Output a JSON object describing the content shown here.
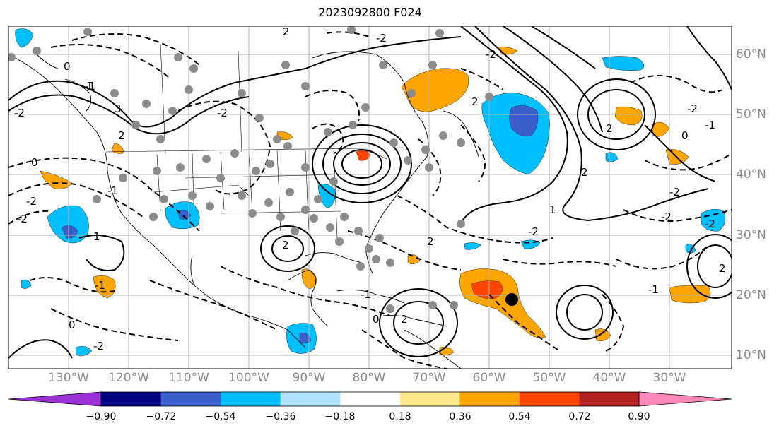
{
  "title": "2023092800 F024",
  "longitude_labels": [
    "130°W",
    "120°W",
    "110°W",
    "100°W",
    "90°W",
    "80°W",
    "70°W",
    "60°W",
    "50°W",
    "40°W",
    "30°W"
  ],
  "latitude_labels": [
    "60°N",
    "50°N",
    "40°N",
    "30°N",
    "20°N",
    "10°N"
  ],
  "colorbar": {
    "tick_labels": [
      "−0.90",
      "−0.72",
      "−0.54",
      "−0.36",
      "−0.18",
      "0.18",
      "0.36",
      "0.54",
      "0.72",
      "0.90"
    ],
    "colors": [
      "#9b30d9",
      "#000080",
      "#3a5fcd",
      "#00bfff",
      "#b0e2ff",
      "#ffffff",
      "#ffe88c",
      "#ffa500",
      "#ff4500",
      "#b22222",
      "#ff88b8"
    ]
  },
  "contour_labels": [
    "2",
    "0",
    "-2",
    "-1",
    "1",
    "3",
    "2",
    "-2",
    "-2",
    "0",
    "-1",
    "1",
    "-2",
    "2",
    "2",
    "-1",
    "-2",
    "0",
    "-2",
    "-1",
    "2",
    "-2",
    "2",
    "0",
    "-2",
    "-2",
    "2",
    "1",
    "-2",
    "-1",
    "-2",
    "0",
    "-2",
    "2",
    "2",
    "-1"
  ],
  "colors": {
    "fill_positive": "#ffa500",
    "fill_positive_strong": "#ff4500",
    "fill_negative": "#00bfff",
    "fill_negative_strong": "#3a5fcd",
    "grid": "#b3b3b3",
    "station": "#8c8c8c"
  }
}
